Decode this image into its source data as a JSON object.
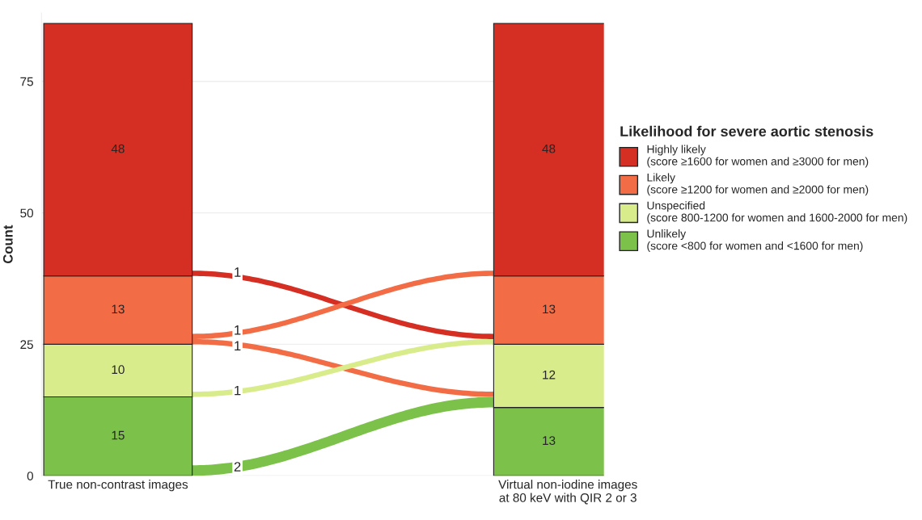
{
  "chart_data": {
    "type": "bar",
    "stacked": true,
    "ylabel": "Count",
    "legend_title": "Likelihood for severe aortic stenosis",
    "categories": [
      "True non-contrast images",
      "Virtual non-iodine images\nat 80 keV with QIR 2 or 3"
    ],
    "series": [
      {
        "name": "Unlikely\n(score <800 for women and <1600 for men)",
        "color": "#7cc14a",
        "values": [
          15,
          13
        ]
      },
      {
        "name": "Unspecified\n(score 800-1200 for women and 1600-2000 for men)",
        "color": "#d9ec8c",
        "values": [
          10,
          12
        ]
      },
      {
        "name": "Likely\n(score ≥1200 for women and ≥2000 for men)",
        "color": "#f26d45",
        "values": [
          13,
          13
        ]
      },
      {
        "name": "Highly likely\n(score ≥1600 for women and ≥3000 for men)",
        "color": "#d52e23",
        "values": [
          48,
          48
        ]
      }
    ],
    "annotations": [
      {
        "text": "1",
        "y": 38.5
      },
      {
        "text": "1",
        "y": 27.5
      },
      {
        "text": "1",
        "y": 24.5
      },
      {
        "text": "1",
        "y": 16
      },
      {
        "text": "2",
        "y": 1.5
      }
    ],
    "data_labels": true,
    "ylim": [
      0,
      88
    ],
    "yticks": [
      0,
      25,
      50,
      75
    ],
    "grid": "y",
    "legend": "right"
  }
}
